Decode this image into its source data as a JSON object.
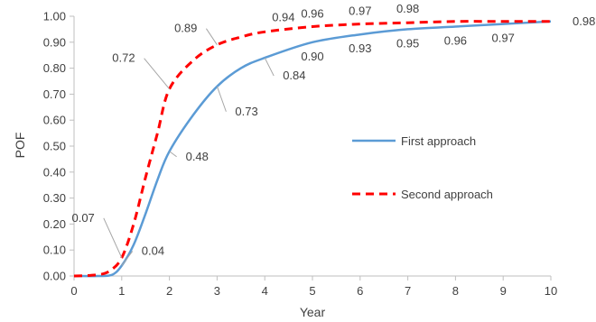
{
  "chart_data": {
    "type": "line",
    "xlabel": "Year",
    "ylabel": "POF",
    "xlim": [
      0,
      10
    ],
    "ylim": [
      0,
      1
    ],
    "x_ticks": [
      "0",
      "1",
      "2",
      "3",
      "4",
      "5",
      "6",
      "7",
      "8",
      "9",
      "10"
    ],
    "y_ticks": [
      "0.00",
      "0.10",
      "0.20",
      "0.30",
      "0.40",
      "0.50",
      "0.60",
      "0.70",
      "0.80",
      "0.90",
      "1.00"
    ],
    "grid": false,
    "legend_position": "right",
    "series": [
      {
        "name": "First approach",
        "color": "#5b9bd5",
        "style": "solid",
        "x": [
          0,
          0.5,
          0.8,
          1,
          1.25,
          1.5,
          1.75,
          2,
          2.5,
          3,
          3.5,
          4,
          5,
          6,
          7,
          8,
          9,
          10
        ],
        "y": [
          0.0,
          0.0,
          0.005,
          0.04,
          0.12,
          0.24,
          0.37,
          0.48,
          0.62,
          0.73,
          0.8,
          0.84,
          0.9,
          0.93,
          0.95,
          0.96,
          0.97,
          0.98
        ],
        "labels": [
          {
            "x": 1,
            "y": 0.04,
            "text": "0.04"
          },
          {
            "x": 2,
            "y": 0.48,
            "text": "0.48"
          },
          {
            "x": 3,
            "y": 0.73,
            "text": "0.73"
          },
          {
            "x": 4,
            "y": 0.84,
            "text": "0.84"
          },
          {
            "x": 5,
            "y": 0.9,
            "text": "0.90"
          },
          {
            "x": 6,
            "y": 0.93,
            "text": "0.93"
          },
          {
            "x": 7,
            "y": 0.95,
            "text": "0.95"
          },
          {
            "x": 8,
            "y": 0.96,
            "text": "0.96"
          },
          {
            "x": 9,
            "y": 0.97,
            "text": "0.97"
          },
          {
            "x": 10,
            "y": 0.98,
            "text": "0.98"
          }
        ]
      },
      {
        "name": "Second approach",
        "color": "#ff0000",
        "style": "dashed",
        "x": [
          0,
          0.5,
          0.75,
          1,
          1.25,
          1.5,
          1.75,
          2,
          2.5,
          3,
          3.5,
          4,
          5,
          6,
          7,
          8,
          9,
          10
        ],
        "y": [
          0.0,
          0.005,
          0.02,
          0.07,
          0.2,
          0.38,
          0.55,
          0.72,
          0.83,
          0.89,
          0.92,
          0.94,
          0.96,
          0.97,
          0.975,
          0.98,
          0.98,
          0.98
        ],
        "labels": [
          {
            "x": 1,
            "y": 0.07,
            "text": "0.07"
          },
          {
            "x": 2,
            "y": 0.72,
            "text": "0.72"
          },
          {
            "x": 3,
            "y": 0.89,
            "text": "0.89"
          },
          {
            "x": 4,
            "y": 0.94,
            "text": "0.94"
          },
          {
            "x": 5,
            "y": 0.96,
            "text": "0.96"
          },
          {
            "x": 6,
            "y": 0.97,
            "text": "0.97"
          },
          {
            "x": 7,
            "y": 0.98,
            "text": "0.98"
          }
        ]
      }
    ]
  }
}
